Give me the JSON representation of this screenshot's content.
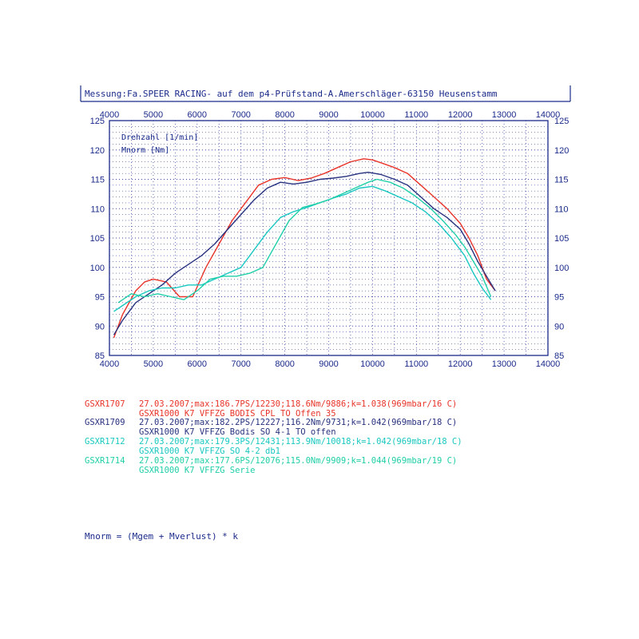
{
  "header": {
    "measurement": "Messung:Fa.SPEER RACING- auf dem p4-Prüfstand-A.Amerschläger-63150 Heusenstamm"
  },
  "inner_labels": {
    "rpm": "Drehzahl [1/min]",
    "torque": "Mnorm [Nm]"
  },
  "chart_data": {
    "type": "line",
    "xlim": [
      4000,
      14000
    ],
    "ylim": [
      85,
      125
    ],
    "x_ticks": [
      "4000",
      "5000",
      "6000",
      "7000",
      "8000",
      "9000",
      "10000",
      "11000",
      "12000",
      "13000",
      "14000"
    ],
    "y_ticks": [
      "85",
      "90",
      "95",
      "100",
      "105",
      "110",
      "115",
      "120",
      "125"
    ],
    "grid": true,
    "series": [
      {
        "name": "GSXR1707",
        "color": "#e8342a",
        "x": [
          4100,
          4300,
          4600,
          4800,
          5000,
          5300,
          5600,
          5900,
          6200,
          6500,
          6800,
          7100,
          7400,
          7700,
          8000,
          8300,
          8600,
          8900,
          9200,
          9500,
          9800,
          10000,
          10200,
          10500,
          10800,
          11100,
          11400,
          11700,
          12000,
          12200,
          12400,
          12600,
          12800
        ],
        "y": [
          88,
          92,
          96,
          97.5,
          98,
          97.5,
          95,
          95,
          100,
          104,
          108,
          111,
          114,
          115,
          115.3,
          114.8,
          115.2,
          116,
          117,
          118,
          118.5,
          118.3,
          117.8,
          117,
          116,
          114,
          112,
          110,
          107.5,
          105,
          102,
          98,
          96
        ]
      },
      {
        "name": "GSXR1709",
        "color": "#28327e",
        "x": [
          4100,
          4300,
          4600,
          4900,
          5200,
          5500,
          5800,
          6100,
          6400,
          6700,
          7000,
          7300,
          7600,
          7900,
          8200,
          8500,
          8800,
          9100,
          9400,
          9700,
          9900,
          10200,
          10500,
          10800,
          11100,
          11400,
          11700,
          12000,
          12200,
          12400,
          12600,
          12800
        ],
        "y": [
          88.5,
          91,
          94,
          95.5,
          97,
          99,
          100.5,
          102,
          104,
          106.5,
          109,
          111.5,
          113.5,
          114.5,
          114.2,
          114.5,
          115,
          115.2,
          115.5,
          116,
          116.2,
          115.8,
          115,
          114,
          112,
          110,
          108.5,
          106.5,
          104,
          101,
          98.5,
          96
        ]
      },
      {
        "name": "GSXR1712",
        "color": "#18c8c0",
        "x": [
          4100,
          4300,
          4600,
          4900,
          5200,
          5500,
          5800,
          6100,
          6400,
          6700,
          7000,
          7300,
          7600,
          7900,
          8200,
          8500,
          8800,
          9100,
          9400,
          9700,
          10000,
          10300,
          10600,
          10900,
          11200,
          11500,
          11800,
          12100,
          12300,
          12500,
          12700
        ],
        "y": [
          92.5,
          93.5,
          95,
          96,
          96.5,
          96.5,
          97,
          97,
          98,
          99,
          100,
          103,
          106,
          108.5,
          109.5,
          110.2,
          111,
          111.8,
          112.5,
          113.5,
          113.8,
          113,
          112,
          111,
          109.5,
          107.5,
          105,
          102,
          99,
          96.5,
          94.5
        ]
      },
      {
        "name": "GSXR1714",
        "color": "#1fcfa8",
        "x": [
          4200,
          4500,
          4800,
          5100,
          5400,
          5700,
          6000,
          6300,
          6600,
          6900,
          7200,
          7500,
          7800,
          8100,
          8400,
          8700,
          9000,
          9300,
          9600,
          9900,
          10100,
          10400,
          10700,
          11000,
          11300,
          11600,
          11900,
          12100,
          12300,
          12500,
          12700
        ],
        "y": [
          94,
          95.5,
          95,
          95.5,
          95,
          94.5,
          96,
          98,
          98.5,
          98.5,
          99,
          100,
          104,
          108,
          110.2,
          110.8,
          111.5,
          112.5,
          113.5,
          114.5,
          115,
          114.5,
          113.5,
          112,
          110.2,
          108,
          105.5,
          103.5,
          101,
          98.5,
          95
        ]
      }
    ]
  },
  "legend": [
    {
      "id": "GSXR1707",
      "color": "#e8342a",
      "line1": "27.03.2007;max:186.7PS/12230;118.6Nm/9886;k=1.038(969mbar/16 C)",
      "line2": "GSXR1000 K7 VFFZG BODIS CPL TO Offen 35"
    },
    {
      "id": "GSXR1709",
      "color": "#28327e",
      "line1": "27.03.2007;max:182.2PS/12227;116.2Nm/9731;k=1.042(969mbar/18 C)",
      "line2": "GSXR1000 K7 VFFZG Bodis SO 4-1 TO offen"
    },
    {
      "id": "GSXR1712",
      "color": "#18c8c0",
      "line1": "27.03.2007;max:179.3PS/12431;113.9Nm/10018;k=1.042(969mbar/18 C)",
      "line2": "GSXR1000 K7 VFFZG SO 4-2 db1"
    },
    {
      "id": "GSXR1714",
      "color": "#1fcfa8",
      "line1": "27.03.2007;max:177.6PS/12076;115.0Nm/9909;k=1.044(969mbar/19 C)",
      "line2": "GSXR1000 K7 VFFZG Serie"
    }
  ],
  "formula": "Mnorm = (Mgem + Mverlust) * k"
}
